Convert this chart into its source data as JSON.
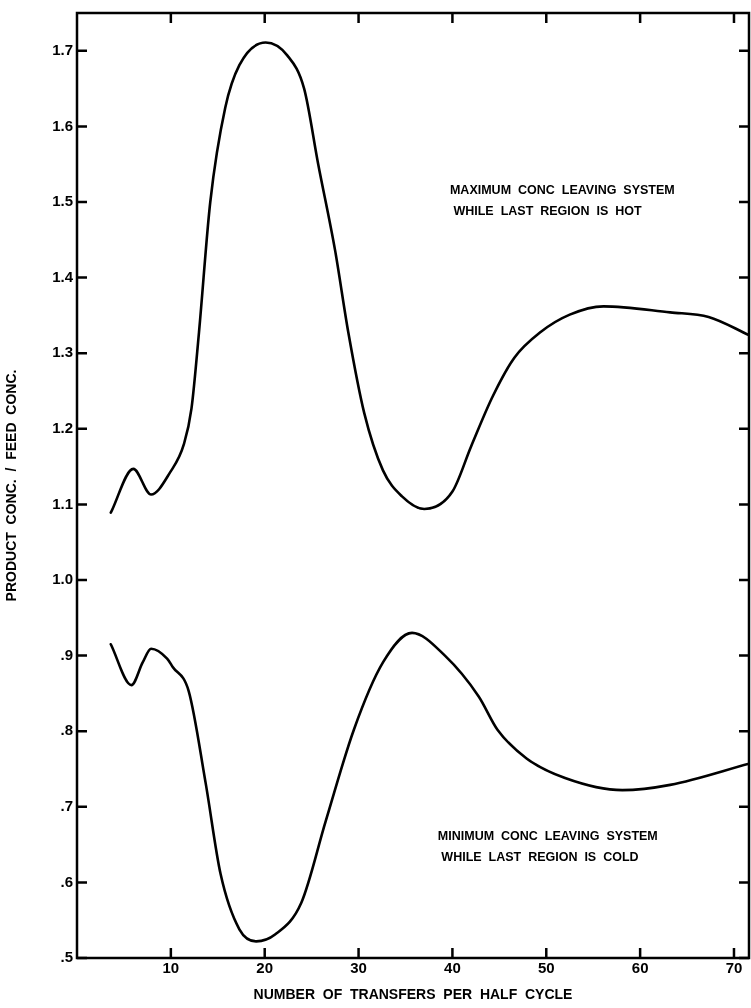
{
  "chart_data": {
    "type": "line",
    "xlabel": "NUMBER  OF  TRANSFERS  PER  HALF  CYCLE",
    "ylabel": "PRODUCT  CONC.  /  FEED  CONC.",
    "xlim": [
      0,
      71.6
    ],
    "xticks": [
      10,
      20,
      30,
      40,
      50,
      60,
      70
    ],
    "ylim": [
      0.5,
      1.75
    ],
    "yticks": [
      {
        "value": 0.5,
        "label": ".5"
      },
      {
        "value": 0.6,
        "label": ".6"
      },
      {
        "value": 0.7,
        "label": ".7"
      },
      {
        "value": 0.8,
        "label": ".8"
      },
      {
        "value": 0.9,
        "label": ".9"
      },
      {
        "value": 1.0,
        "label": "1.0"
      },
      1.1,
      1.2,
      1.3,
      1.4,
      1.5,
      1.6,
      1.7
    ],
    "grid": false,
    "legend": false,
    "marker": "none",
    "line_style": "solid",
    "annotations": [
      "MAXIMUM  CONC  LEAVING  SYSTEM\n WHILE  LAST  REGION  IS  HOT",
      "MINIMUM  CONC  LEAVING  SYSTEM\n WHILE  LAST  REGION  IS  COLD"
    ],
    "series": [
      {
        "color": "#000000",
        "x": [
          3.6,
          6.0,
          7.9,
          9.9,
          11.4,
          12.2,
          13.0,
          14.2,
          15.8,
          17.3,
          20.1,
          22.4,
          24.2,
          25.7,
          27.5,
          28.9,
          30.6,
          32.6,
          34.6,
          37.0,
          40.0,
          42.0,
          44.3,
          46.6,
          49.4,
          52.5,
          56.1,
          63.2,
          67.3,
          71.6
        ],
        "values": [
          1.089,
          1.147,
          1.113,
          1.142,
          1.18,
          1.227,
          1.328,
          1.5,
          1.625,
          1.681,
          1.711,
          1.694,
          1.65,
          1.55,
          1.436,
          1.328,
          1.221,
          1.145,
          1.111,
          1.094,
          1.117,
          1.177,
          1.243,
          1.294,
          1.328,
          1.351,
          1.362,
          1.354,
          1.348,
          1.324
        ]
      },
      {
        "color": "#000000",
        "x": [
          3.6,
          5.8,
          7.0,
          7.9,
          9.6,
          10.2,
          11.9,
          13.7,
          15.3,
          17.3,
          19.1,
          21.1,
          23.9,
          26.5,
          29.5,
          32.6,
          35.7,
          39.2,
          42.8,
          44.8,
          47.9,
          52.0,
          58.1,
          63.2,
          71.6
        ],
        "values": [
          0.915,
          0.861,
          0.891,
          0.909,
          0.896,
          0.885,
          0.853,
          0.732,
          0.611,
          0.538,
          0.522,
          0.531,
          0.573,
          0.681,
          0.802,
          0.891,
          0.93,
          0.9,
          0.846,
          0.802,
          0.764,
          0.738,
          0.722,
          0.729,
          0.757
        ]
      }
    ]
  }
}
